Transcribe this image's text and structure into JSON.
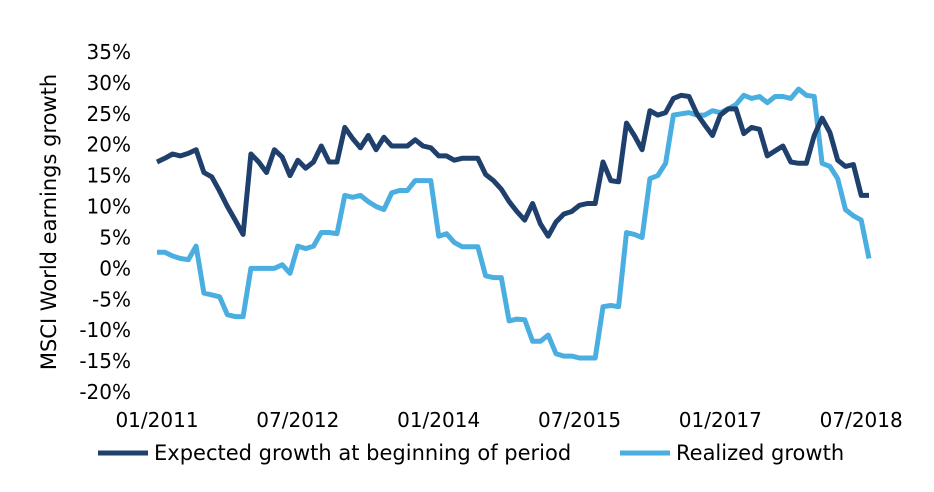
{
  "chart_data": {
    "type": "line",
    "title": "",
    "xlabel": "",
    "ylabel": "MSCI World earnings growth",
    "x_tick_labels": [
      "01/2011",
      "07/2012",
      "01/2014",
      "07/2015",
      "01/2017",
      "07/2018"
    ],
    "y_tick_labels": [
      "35%",
      "30%",
      "25%",
      "20%",
      "15%",
      "10%",
      "5%",
      "0%",
      "-5%",
      "-10%",
      "-15%",
      "-20%"
    ],
    "ylim": [
      -20,
      35
    ],
    "xlim": [
      "2011-01",
      "2018-08"
    ],
    "grid": false,
    "legend": "bottom",
    "x": [
      "2011-01",
      "2011-02",
      "2011-03",
      "2011-04",
      "2011-05",
      "2011-06",
      "2011-07",
      "2011-08",
      "2011-09",
      "2011-10",
      "2011-11",
      "2011-12",
      "2012-01",
      "2012-02",
      "2012-03",
      "2012-04",
      "2012-05",
      "2012-06",
      "2012-07",
      "2012-08",
      "2012-09",
      "2012-10",
      "2012-11",
      "2012-12",
      "2013-01",
      "2013-02",
      "2013-03",
      "2013-04",
      "2013-05",
      "2013-06",
      "2013-07",
      "2013-08",
      "2013-09",
      "2013-10",
      "2013-11",
      "2013-12",
      "2014-01",
      "2014-02",
      "2014-03",
      "2014-04",
      "2014-05",
      "2014-06",
      "2014-07",
      "2014-08",
      "2014-09",
      "2014-10",
      "2014-11",
      "2014-12",
      "2015-01",
      "2015-02",
      "2015-03",
      "2015-04",
      "2015-05",
      "2015-06",
      "2015-07",
      "2015-08",
      "2015-09",
      "2015-10",
      "2015-11",
      "2015-12",
      "2016-01",
      "2016-02",
      "2016-03",
      "2016-04",
      "2016-05",
      "2016-06",
      "2016-07",
      "2016-08",
      "2016-09",
      "2016-10",
      "2016-11",
      "2016-12",
      "2017-01",
      "2017-02",
      "2017-03",
      "2017-04",
      "2017-05",
      "2017-06",
      "2017-07",
      "2017-08",
      "2017-09",
      "2017-10",
      "2017-11",
      "2017-12",
      "2018-01",
      "2018-02",
      "2018-03",
      "2018-04",
      "2018-05",
      "2018-06",
      "2018-07",
      "2018-08"
    ],
    "series": [
      {
        "name": "Expected growth at beginning of period",
        "color": "#1f3f6c",
        "values": [
          17.2,
          17.8,
          18.5,
          18.2,
          18.6,
          19.2,
          15.5,
          14.8,
          12.5,
          10.0,
          7.8,
          5.5,
          18.5,
          17.2,
          15.5,
          19.2,
          18.0,
          15.0,
          17.5,
          16.2,
          17.2,
          19.8,
          17.2,
          17.2,
          22.8,
          21.0,
          19.5,
          21.5,
          19.2,
          21.2,
          19.8,
          19.8,
          19.8,
          20.8,
          19.8,
          19.5,
          18.2,
          18.2,
          17.5,
          17.8,
          17.8,
          17.8,
          15.2,
          14.2,
          12.8,
          10.8,
          9.2,
          7.8,
          10.5,
          7.2,
          5.2,
          7.5,
          8.8,
          9.2,
          10.2,
          10.5,
          10.5,
          17.2,
          14.2,
          14.0,
          23.5,
          21.5,
          19.2,
          25.5,
          24.8,
          25.2,
          27.5,
          28.0,
          27.8,
          25.0,
          23.2,
          21.5,
          24.8,
          25.8,
          25.8,
          21.8,
          22.8,
          22.5,
          18.2,
          19.0,
          19.8,
          17.2,
          17.0,
          17.0,
          21.5,
          24.3,
          22.0,
          17.5,
          16.5,
          16.8,
          11.8,
          11.8
        ]
      },
      {
        "name": "Realized growth",
        "color": "#4aaee0",
        "values": [
          2.6,
          2.6,
          2.0,
          1.6,
          1.4,
          3.6,
          -4.0,
          -4.3,
          -4.6,
          -7.5,
          -7.8,
          -7.8,
          0.0,
          0.0,
          0.0,
          0.0,
          0.6,
          -0.8,
          3.6,
          3.2,
          3.6,
          5.8,
          5.8,
          5.6,
          11.8,
          11.5,
          11.8,
          10.8,
          10.0,
          9.5,
          12.2,
          12.6,
          12.6,
          14.2,
          14.2,
          14.2,
          5.2,
          5.6,
          4.2,
          3.5,
          3.5,
          3.5,
          -1.2,
          -1.5,
          -1.5,
          -8.5,
          -8.2,
          -8.3,
          -11.8,
          -11.8,
          -10.8,
          -13.8,
          -14.2,
          -14.2,
          -14.5,
          -14.5,
          -14.5,
          -6.2,
          -6.0,
          -6.2,
          5.8,
          5.5,
          5.0,
          14.5,
          15.0,
          17.0,
          24.8,
          25.0,
          25.2,
          24.8,
          24.8,
          25.5,
          25.2,
          25.8,
          26.5,
          28.0,
          27.5,
          27.8,
          26.8,
          27.8,
          27.8,
          27.5,
          29.0,
          28.0,
          27.8,
          17.0,
          16.5,
          14.5,
          9.5,
          8.5,
          7.8,
          1.6
        ]
      }
    ]
  }
}
